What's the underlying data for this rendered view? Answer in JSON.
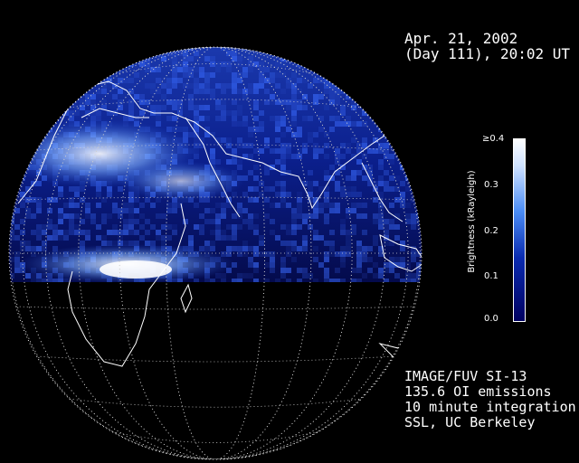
{
  "header": {
    "date_line": "Apr. 21, 2002",
    "day_line": "(Day 111), 20:02 UT"
  },
  "colorbar": {
    "title": "Brightness (kRayleigh)",
    "ticks": [
      "≥0.4",
      "0.3",
      "0.2",
      "0.1",
      "0.0"
    ],
    "values": [
      0.4,
      0.3,
      0.2,
      0.1,
      0.0
    ],
    "colors": {
      "low": "#000070",
      "mid": "#3a7ff0",
      "high": "#ffffff"
    }
  },
  "credits": {
    "line1": "IMAGE/FUV SI-13",
    "line2": "135.6 OI emissions",
    "line3": "10 minute integration",
    "line4": "SSL, UC Berkeley"
  }
}
